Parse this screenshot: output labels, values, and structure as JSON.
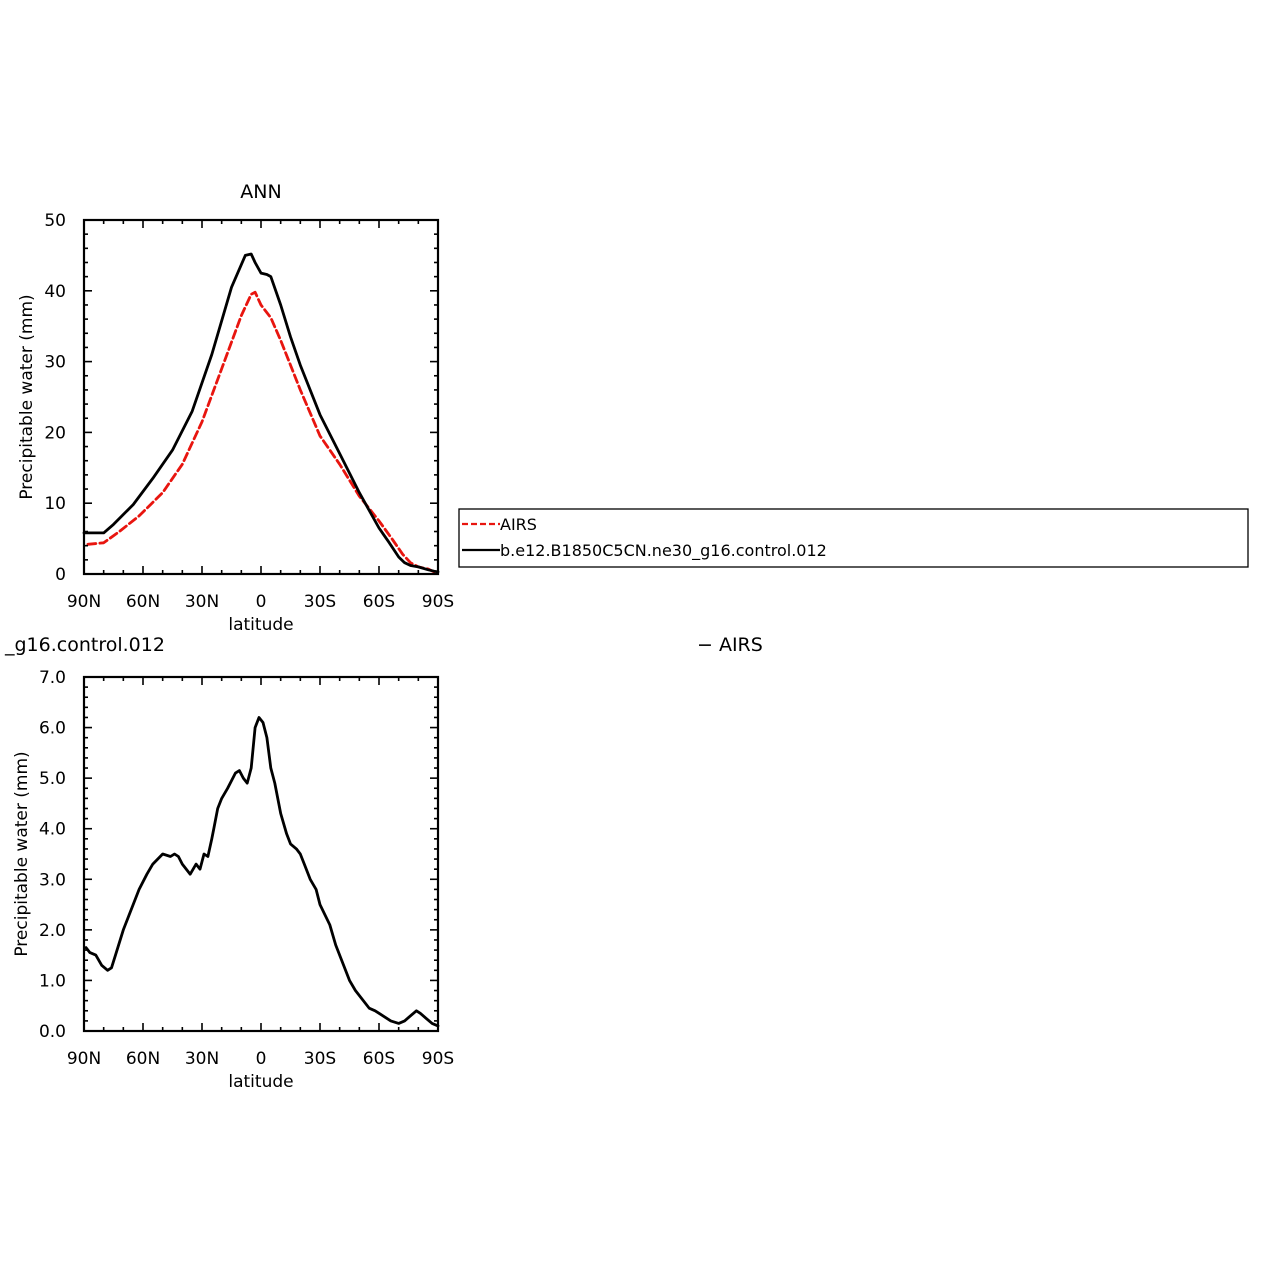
{
  "chart_data": [
    {
      "type": "line",
      "title": "ANN",
      "xlabel": "latitude",
      "ylabel": "Precipitable water (mm)",
      "xlim": [
        90,
        -90
      ],
      "ylim": [
        0,
        50
      ],
      "xticks": [
        {
          "v": 90,
          "label": "90N"
        },
        {
          "v": 60,
          "label": "60N"
        },
        {
          "v": 30,
          "label": "30N"
        },
        {
          "v": 0,
          "label": "0"
        },
        {
          "v": -30,
          "label": "30S"
        },
        {
          "v": -60,
          "label": "60S"
        },
        {
          "v": -90,
          "label": "90S"
        }
      ],
      "yticks": [
        {
          "v": 0,
          "label": "0"
        },
        {
          "v": 10,
          "label": "10"
        },
        {
          "v": 20,
          "label": "20"
        },
        {
          "v": 30,
          "label": "30"
        },
        {
          "v": 40,
          "label": "40"
        },
        {
          "v": 50,
          "label": "50"
        }
      ],
      "legend": "right",
      "series": [
        {
          "name": "AIRS",
          "color": "#e8150f",
          "dashed": true,
          "x": [
            88,
            80,
            72,
            62,
            50,
            40,
            30,
            20,
            10,
            5,
            3,
            0,
            -5,
            -10,
            -15,
            -20,
            -30,
            -40,
            -50,
            -60,
            -67,
            -72,
            -76,
            -80,
            -85,
            -88
          ],
          "y": [
            4.2,
            4.4,
            6.0,
            8.2,
            11.5,
            15.5,
            21.5,
            29.0,
            36.5,
            39.5,
            39.8,
            38.0,
            36.2,
            33.0,
            29.5,
            26.0,
            19.5,
            15.5,
            11.0,
            7.5,
            4.8,
            2.8,
            1.6,
            1.0,
            0.7,
            0.3
          ]
        },
        {
          "name": "b.e12.B1850C5CN.ne30_g16.control.012",
          "color": "#000000",
          "dashed": false,
          "x": [
            90,
            80,
            75,
            65,
            55,
            45,
            35,
            25,
            15,
            8,
            5,
            3,
            0,
            -3,
            -5,
            -10,
            -15,
            -20,
            -30,
            -40,
            -50,
            -60,
            -65,
            -70,
            -73,
            -76,
            -80,
            -85,
            -88,
            -90
          ],
          "y": [
            5.8,
            5.8,
            7.0,
            9.8,
            13.5,
            17.5,
            23.0,
            31.0,
            40.5,
            45.0,
            45.2,
            44.0,
            42.5,
            42.3,
            42.0,
            38.0,
            33.5,
            29.5,
            22.5,
            17.0,
            11.5,
            6.5,
            4.5,
            2.4,
            1.6,
            1.2,
            1.0,
            0.6,
            0.4,
            0.3
          ]
        }
      ]
    },
    {
      "type": "line",
      "title": "",
      "xlabel": "latitude",
      "ylabel": "Precipitable water (mm)",
      "xlim": [
        90,
        -90
      ],
      "ylim": [
        0,
        7
      ],
      "xticks": [
        {
          "v": 90,
          "label": "90N"
        },
        {
          "v": 60,
          "label": "60N"
        },
        {
          "v": 30,
          "label": "30N"
        },
        {
          "v": 0,
          "label": "0"
        },
        {
          "v": -30,
          "label": "30S"
        },
        {
          "v": -60,
          "label": "60S"
        },
        {
          "v": -90,
          "label": "90S"
        }
      ],
      "yticks": [
        {
          "v": 0,
          "label": "0.0"
        },
        {
          "v": 1,
          "label": "1.0"
        },
        {
          "v": 2,
          "label": "2.0"
        },
        {
          "v": 3,
          "label": "3.0"
        },
        {
          "v": 4,
          "label": "4.0"
        },
        {
          "v": 5,
          "label": "5.0"
        },
        {
          "v": 6,
          "label": "6.0"
        },
        {
          "v": 7,
          "label": "7.0"
        }
      ],
      "series": [
        {
          "name": "",
          "color": "#000000",
          "dashed": false,
          "x": [
            89,
            87,
            84,
            81,
            78,
            76,
            74,
            70,
            66,
            62,
            58,
            55,
            50,
            46,
            44,
            42,
            40,
            36,
            33,
            31,
            29,
            27,
            25,
            24,
            22,
            20,
            17,
            13,
            11,
            9,
            7,
            5,
            3,
            1,
            -1,
            -3,
            -5,
            -7,
            -10,
            -13,
            -15,
            -18,
            -20,
            -22,
            -25,
            -28,
            -30,
            -35,
            -38,
            -42,
            -45,
            -48,
            -55,
            -58,
            -62,
            -66,
            -70,
            -73,
            -76,
            -79,
            -81,
            -84,
            -87,
            -90
          ],
          "y": [
            1.65,
            1.55,
            1.5,
            1.3,
            1.2,
            1.25,
            1.5,
            2.0,
            2.4,
            2.8,
            3.1,
            3.3,
            3.5,
            3.45,
            3.5,
            3.45,
            3.3,
            3.1,
            3.3,
            3.2,
            3.5,
            3.45,
            3.8,
            4.0,
            4.4,
            4.6,
            4.8,
            5.1,
            5.15,
            5.0,
            4.9,
            5.2,
            6.0,
            6.2,
            6.1,
            5.8,
            5.2,
            4.9,
            4.3,
            3.9,
            3.7,
            3.6,
            3.5,
            3.3,
            3.0,
            2.8,
            2.5,
            2.1,
            1.7,
            1.3,
            1.0,
            0.8,
            0.45,
            0.4,
            0.3,
            0.2,
            0.15,
            0.2,
            0.3,
            0.4,
            0.35,
            0.25,
            0.15,
            0.1
          ]
        }
      ]
    }
  ],
  "legend": {
    "entries": [
      {
        "label": "AIRS",
        "color": "#e8150f",
        "dashed": true
      },
      {
        "label": "b.e12.B1850C5CN.ne30_g16.control.012",
        "color": "#000000",
        "dashed": false
      }
    ]
  },
  "diff_title": {
    "left": "_g16.control.012",
    "right": "− AIRS"
  }
}
